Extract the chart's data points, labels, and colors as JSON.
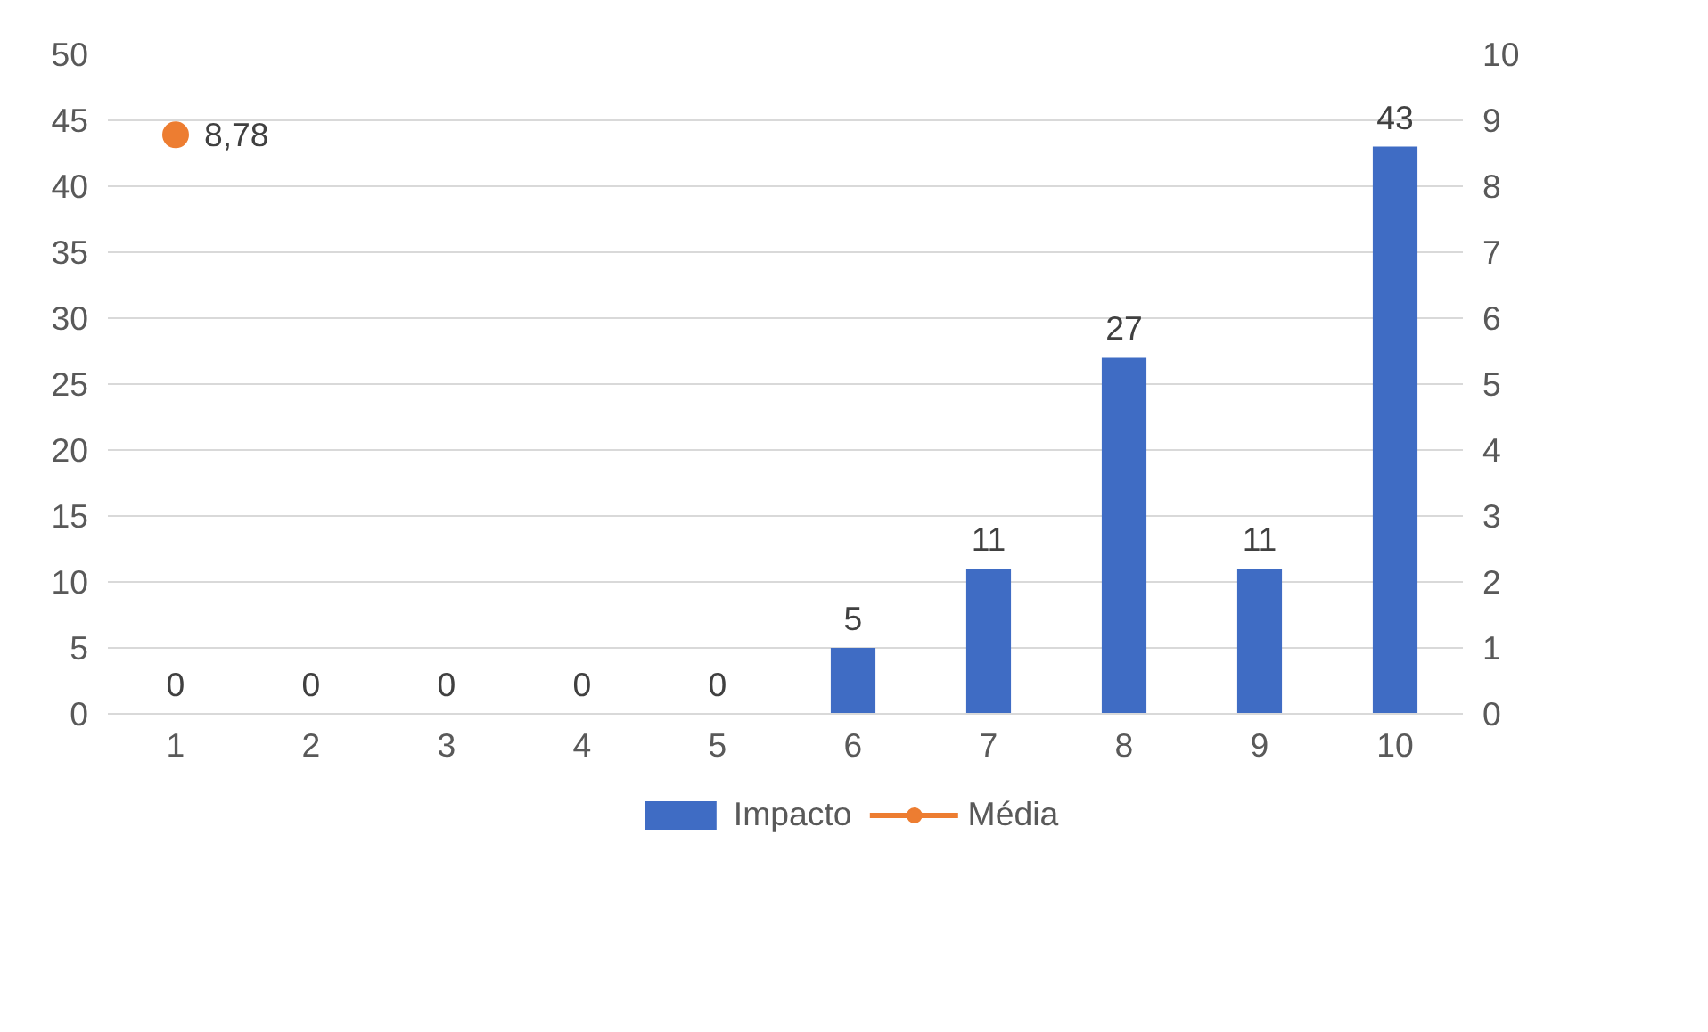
{
  "chart_data": {
    "type": "bar",
    "categories": [
      "1",
      "2",
      "3",
      "4",
      "5",
      "6",
      "7",
      "8",
      "9",
      "10"
    ],
    "series": [
      {
        "name": "Impacto",
        "color": "#3f6cc4",
        "values": [
          0,
          0,
          0,
          0,
          0,
          5,
          11,
          27,
          11,
          43
        ],
        "value_labels": [
          "0",
          "0",
          "0",
          "0",
          "0",
          "5",
          "11",
          "27",
          "11",
          "43"
        ]
      },
      {
        "name": "Média",
        "type": "line",
        "axis": "y2",
        "marker": "circle",
        "color": "#ed7d31",
        "values": [
          8.78,
          null,
          null,
          null,
          null,
          null,
          null,
          null,
          null,
          null
        ],
        "value_labels": [
          "8,78",
          null,
          null,
          null,
          null,
          null,
          null,
          null,
          null,
          null
        ]
      }
    ],
    "ylim": [
      0,
      50
    ],
    "yticks": [
      0,
      5,
      10,
      15,
      20,
      25,
      30,
      35,
      40,
      45,
      50
    ],
    "y2lim": [
      0,
      10
    ],
    "y2ticks": [
      0,
      1,
      2,
      3,
      4,
      5,
      6,
      7,
      8,
      9,
      10
    ],
    "grid": "y",
    "legend": "bottom"
  }
}
